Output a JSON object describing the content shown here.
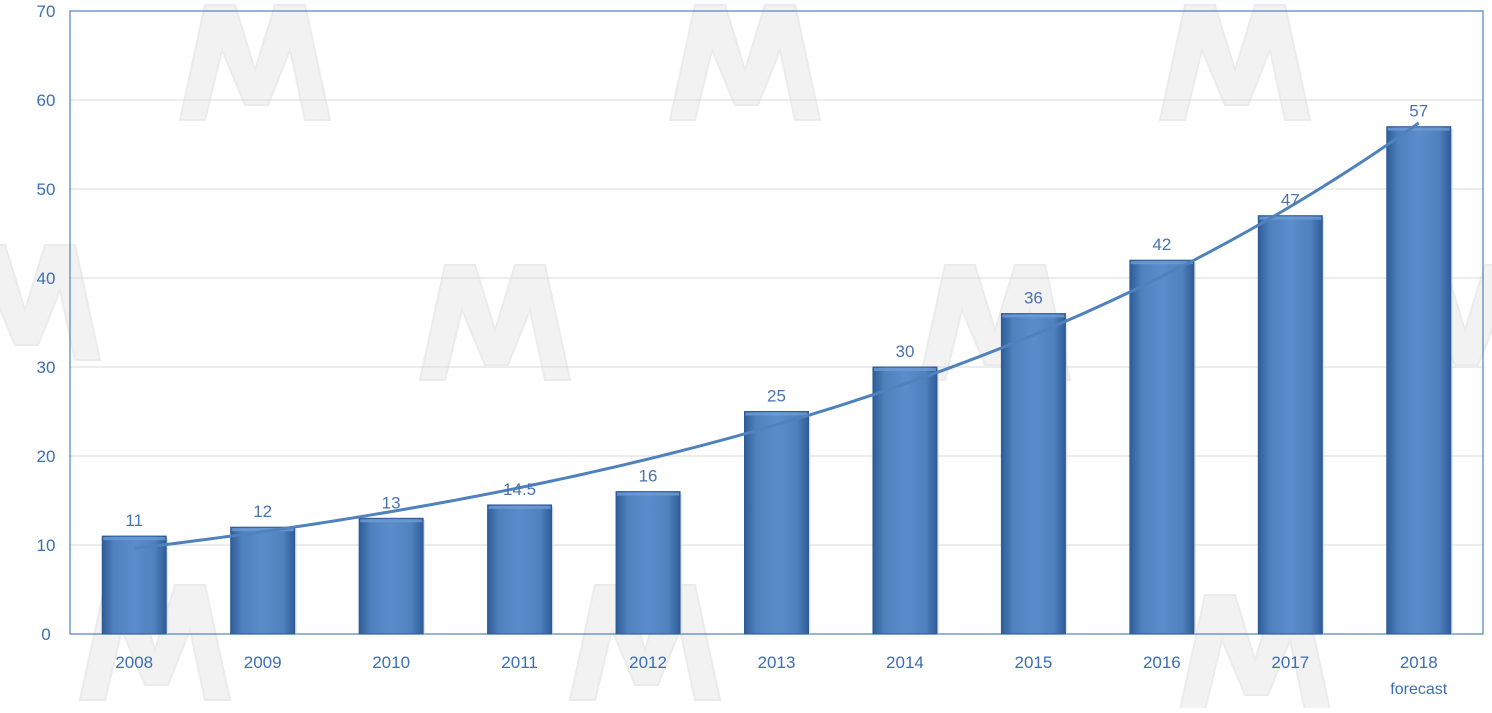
{
  "colors": {
    "bar": "#4f81bd",
    "bar_light": "#6d9bd6",
    "bar_dark": "#2d5a94",
    "label": "#4a73b0",
    "axis_text": "#3c6eb4",
    "frame": "#4f81bd",
    "grid": "#d9d9d9",
    "trend": "#4f81bd",
    "watermark": "#e8e8e8"
  },
  "chart_data": {
    "type": "bar",
    "title": "",
    "xlabel": "",
    "ylabel": "",
    "ylim": [
      0,
      70
    ],
    "yticks": [
      "0",
      "10",
      "20",
      "30",
      "40",
      "50",
      "60",
      "70"
    ],
    "categories": [
      "2008",
      "2009",
      "2010",
      "2011",
      "2012",
      "2013",
      "2014",
      "2015",
      "2016",
      "2017",
      "2018"
    ],
    "category_sublabels": [
      "",
      "",
      "",
      "",
      "",
      "",
      "",
      "",
      "",
      "",
      "forecast"
    ],
    "values": [
      11,
      12,
      13,
      14.5,
      16,
      25,
      30,
      36,
      42,
      47,
      57
    ],
    "data_labels": [
      "11",
      "12",
      "13",
      "14.5",
      "16",
      "25",
      "30",
      "36",
      "42",
      "47",
      "57"
    ],
    "trendline": "exponential",
    "grid": true,
    "legend": "none"
  }
}
